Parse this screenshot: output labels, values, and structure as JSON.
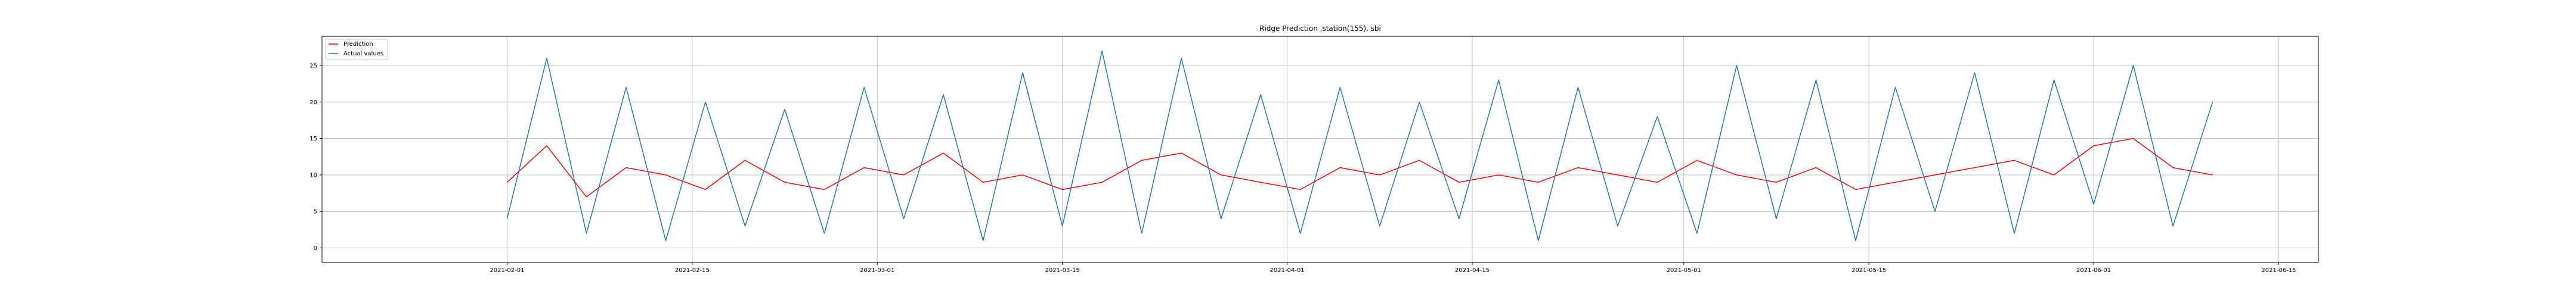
{
  "chart_data": {
    "type": "line",
    "title": "Ridge Prediction ,station(155), sbi",
    "xlabel": "",
    "ylabel": "",
    "grid": true,
    "legend_position": "top-left",
    "x_range": [
      "2021-01-18",
      "2021-06-18"
    ],
    "ylim": [
      -2,
      29
    ],
    "x_ticks": [
      "2021-02-01",
      "2021-02-15",
      "2021-03-01",
      "2021-03-15",
      "2021-04-01",
      "2021-04-15",
      "2021-05-01",
      "2021-05-15",
      "2021-06-01",
      "2021-06-15"
    ],
    "y_ticks": [
      0,
      5,
      10,
      15,
      20,
      25
    ],
    "series": [
      {
        "name": "Prediction",
        "color": "#ff0000",
        "x": [
          "2021-02-01",
          "2021-02-04",
          "2021-02-07",
          "2021-02-10",
          "2021-02-13",
          "2021-02-16",
          "2021-02-19",
          "2021-02-22",
          "2021-02-25",
          "2021-02-28",
          "2021-03-03",
          "2021-03-06",
          "2021-03-09",
          "2021-03-12",
          "2021-03-15",
          "2021-03-18",
          "2021-03-21",
          "2021-03-24",
          "2021-03-27",
          "2021-03-30",
          "2021-04-02",
          "2021-04-05",
          "2021-04-08",
          "2021-04-11",
          "2021-04-14",
          "2021-04-17",
          "2021-04-20",
          "2021-04-23",
          "2021-04-26",
          "2021-04-29",
          "2021-05-02",
          "2021-05-05",
          "2021-05-08",
          "2021-05-11",
          "2021-05-14",
          "2021-05-17",
          "2021-05-20",
          "2021-05-23",
          "2021-05-26",
          "2021-05-29",
          "2021-06-01",
          "2021-06-04",
          "2021-06-07",
          "2021-06-10"
        ],
        "values": [
          9,
          14,
          7,
          11,
          10,
          8,
          12,
          9,
          8,
          11,
          10,
          13,
          9,
          10,
          8,
          9,
          12,
          13,
          10,
          9,
          8,
          11,
          10,
          12,
          9,
          10,
          9,
          11,
          10,
          9,
          12,
          10,
          9,
          11,
          8,
          9,
          10,
          11,
          12,
          10,
          14,
          15,
          11,
          10
        ]
      },
      {
        "name": "Actual values",
        "color": "#1f77b4",
        "x": [
          "2021-02-01",
          "2021-02-04",
          "2021-02-07",
          "2021-02-10",
          "2021-02-13",
          "2021-02-16",
          "2021-02-19",
          "2021-02-22",
          "2021-02-25",
          "2021-02-28",
          "2021-03-03",
          "2021-03-06",
          "2021-03-09",
          "2021-03-12",
          "2021-03-15",
          "2021-03-18",
          "2021-03-21",
          "2021-03-24",
          "2021-03-27",
          "2021-03-30",
          "2021-04-02",
          "2021-04-05",
          "2021-04-08",
          "2021-04-11",
          "2021-04-14",
          "2021-04-17",
          "2021-04-20",
          "2021-04-23",
          "2021-04-26",
          "2021-04-29",
          "2021-05-02",
          "2021-05-05",
          "2021-05-08",
          "2021-05-11",
          "2021-05-14",
          "2021-05-17",
          "2021-05-20",
          "2021-05-23",
          "2021-05-26",
          "2021-05-29",
          "2021-06-01",
          "2021-06-04",
          "2021-06-07",
          "2021-06-10"
        ],
        "values": [
          4,
          26,
          2,
          22,
          1,
          20,
          3,
          19,
          2,
          22,
          4,
          21,
          1,
          24,
          3,
          27,
          2,
          26,
          4,
          21,
          2,
          22,
          3,
          20,
          4,
          23,
          1,
          22,
          3,
          18,
          2,
          25,
          4,
          23,
          1,
          22,
          5,
          24,
          2,
          23,
          6,
          25,
          3,
          20
        ]
      }
    ]
  }
}
